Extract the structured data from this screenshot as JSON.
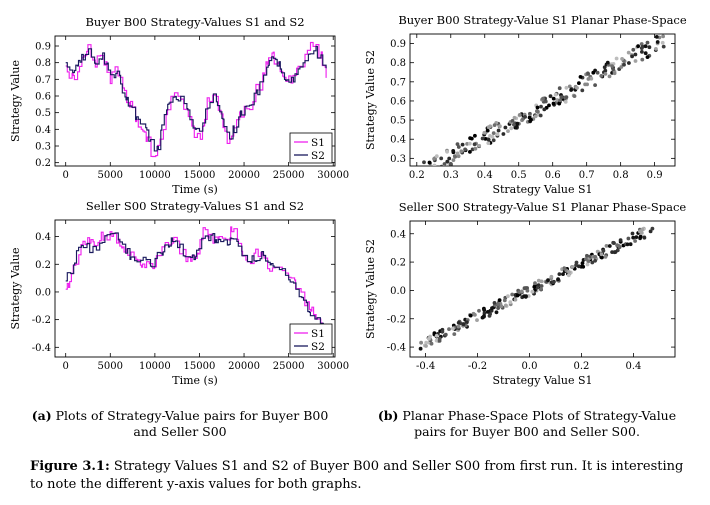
{
  "colors": {
    "s1": "#ee22ee",
    "s2": "#1a1a5e",
    "axis": "#000000"
  },
  "chart_data": [
    {
      "id": "buyer-line",
      "type": "line",
      "title": "Buyer B00 Strategy-Values S1 and S2",
      "xlabel": "Time (s)",
      "ylabel": "Strategy Value",
      "xlim": [
        -1200,
        30200
      ],
      "ylim": [
        0.18,
        0.96
      ],
      "xticks": [
        0,
        5000,
        10000,
        15000,
        20000,
        25000,
        30000
      ],
      "yticks": [
        0.2,
        0.3,
        0.4,
        0.5,
        0.6,
        0.7,
        0.8,
        0.9
      ],
      "legend": "bottom-right",
      "series": [
        {
          "name": "S1",
          "color": "#ee22ee",
          "anchors_x": [
            0,
            800,
            1800,
            2600,
            3400,
            4200,
            5000,
            5800,
            6600,
            7400,
            8200,
            9000,
            9800,
            10400,
            11000,
            11800,
            12600,
            13400,
            14200,
            15000,
            15800,
            16600,
            17400,
            18200,
            19000,
            19800,
            20600,
            21400,
            22200,
            23000,
            23800,
            24600,
            25400,
            26200,
            27000,
            27800,
            28600,
            29200
          ],
          "anchors_y": [
            0.78,
            0.7,
            0.82,
            0.9,
            0.8,
            0.84,
            0.7,
            0.76,
            0.62,
            0.54,
            0.42,
            0.36,
            0.24,
            0.27,
            0.45,
            0.6,
            0.62,
            0.52,
            0.4,
            0.34,
            0.55,
            0.62,
            0.5,
            0.3,
            0.42,
            0.52,
            0.55,
            0.64,
            0.72,
            0.86,
            0.8,
            0.72,
            0.7,
            0.78,
            0.86,
            0.91,
            0.84,
            0.72
          ],
          "seed": 11,
          "noise": 0.04
        },
        {
          "name": "S2",
          "color": "#1a1a5e",
          "anchors_x": [
            0,
            800,
            1800,
            2600,
            3400,
            4200,
            5000,
            5800,
            6600,
            7400,
            8200,
            9000,
            9800,
            10400,
            11000,
            11800,
            12600,
            13400,
            14200,
            15000,
            15800,
            16600,
            17400,
            18200,
            19000,
            19800,
            20600,
            21400,
            22200,
            23000,
            23800,
            24600,
            25400,
            26200,
            27000,
            27800,
            28600,
            29200
          ],
          "anchors_y": [
            0.8,
            0.72,
            0.84,
            0.86,
            0.8,
            0.84,
            0.72,
            0.74,
            0.6,
            0.54,
            0.44,
            0.38,
            0.28,
            0.3,
            0.46,
            0.58,
            0.6,
            0.54,
            0.42,
            0.36,
            0.52,
            0.6,
            0.5,
            0.34,
            0.42,
            0.5,
            0.56,
            0.62,
            0.7,
            0.82,
            0.8,
            0.72,
            0.7,
            0.76,
            0.86,
            0.9,
            0.82,
            0.74
          ],
          "seed": 23,
          "noise": 0.03
        }
      ]
    },
    {
      "id": "seller-line",
      "type": "line",
      "title": "Seller S00 Strategy-Values S1 and S2",
      "xlabel": "Time (s)",
      "ylabel": "Strategy Value",
      "xlim": [
        -1200,
        30200
      ],
      "ylim": [
        -0.47,
        0.52
      ],
      "xticks": [
        0,
        5000,
        10000,
        15000,
        20000,
        25000,
        30000
      ],
      "yticks": [
        -0.4,
        -0.2,
        0.0,
        0.2,
        0.4
      ],
      "legend": "bottom-right",
      "series": [
        {
          "name": "S1",
          "color": "#ee22ee",
          "anchors_x": [
            0,
            600,
            1400,
            2400,
            3400,
            4200,
            5000,
            5800,
            6800,
            7800,
            8800,
            9600,
            10400,
            11200,
            12000,
            12800,
            13800,
            14800,
            15600,
            16400,
            17200,
            18000,
            18800,
            19600,
            20400,
            21200,
            22000,
            22800,
            23600,
            24400,
            25200,
            26000,
            26800,
            27600,
            28400,
            29000
          ],
          "anchors_y": [
            0.02,
            0.12,
            0.3,
            0.36,
            0.3,
            0.42,
            0.4,
            0.36,
            0.3,
            0.2,
            0.18,
            0.2,
            0.24,
            0.34,
            0.4,
            0.3,
            0.2,
            0.3,
            0.46,
            0.4,
            0.36,
            0.4,
            0.44,
            0.3,
            0.22,
            0.26,
            0.32,
            0.16,
            0.16,
            0.2,
            0.06,
            0.04,
            -0.08,
            -0.14,
            -0.22,
            -0.3
          ],
          "seed": 37,
          "noise": 0.045
        },
        {
          "name": "S2",
          "color": "#1a1a5e",
          "anchors_x": [
            0,
            600,
            1400,
            2400,
            3400,
            4200,
            5000,
            5800,
            6800,
            7800,
            8800,
            9600,
            10400,
            11200,
            12000,
            12800,
            13800,
            14800,
            15600,
            16400,
            17200,
            18000,
            18800,
            19600,
            20400,
            21200,
            22000,
            22800,
            23600,
            24400,
            25200,
            26000,
            26800,
            27600,
            28400,
            29000
          ],
          "anchors_y": [
            0.08,
            0.16,
            0.3,
            0.32,
            0.32,
            0.4,
            0.44,
            0.38,
            0.3,
            0.22,
            0.22,
            0.2,
            0.26,
            0.32,
            0.38,
            0.32,
            0.22,
            0.3,
            0.4,
            0.4,
            0.36,
            0.36,
            0.38,
            0.3,
            0.24,
            0.22,
            0.28,
            0.2,
            0.16,
            0.18,
            0.08,
            0.0,
            -0.08,
            -0.16,
            -0.24,
            -0.3
          ],
          "seed": 41,
          "noise": 0.035
        }
      ]
    },
    {
      "id": "buyer-scatter",
      "type": "scatter",
      "title": "Buyer B00 Strategy-Value S1 Planar Phase-Space",
      "xlabel": "Strategy Value S1",
      "ylabel": "Strategy Value S2",
      "xlim": [
        0.18,
        0.96
      ],
      "ylim": [
        0.26,
        0.95
      ],
      "xticks": [
        0.2,
        0.3,
        0.4,
        0.5,
        0.6,
        0.7,
        0.8,
        0.9
      ],
      "yticks": [
        0.3,
        0.4,
        0.5,
        0.6,
        0.7,
        0.8,
        0.9
      ],
      "generator": {
        "n": 230,
        "xmin": 0.22,
        "xmax": 0.93,
        "slope": 0.97,
        "intercept": 0.02,
        "spread": 0.045,
        "seed": 101
      }
    },
    {
      "id": "seller-scatter",
      "type": "scatter",
      "title": "Seller S00 Strategy-Value S1 Planar Phase-Space",
      "xlabel": "Strategy Value S1",
      "ylabel": "Strategy Value S2",
      "xlim": [
        -0.46,
        0.56
      ],
      "ylim": [
        -0.47,
        0.49
      ],
      "xticks": [
        -0.4,
        -0.2,
        0.0,
        0.2,
        0.4
      ],
      "yticks": [
        -0.4,
        -0.2,
        0.0,
        0.2,
        0.4
      ],
      "generator": {
        "n": 230,
        "xmin": -0.42,
        "xmax": 0.48,
        "slope": 0.93,
        "intercept": 0.0,
        "spread": 0.04,
        "seed": 202
      }
    }
  ],
  "captions": {
    "a_label": "(a)",
    "a_text": "Plots of Strategy-Value pairs for Buyer B00 and Seller S00",
    "b_label": "(b)",
    "b_text": "Planar Phase-Space Plots of Strategy-Value pairs for Buyer B00 and Seller S00.",
    "figure_label": "Figure 3.1:",
    "figure_text": "Strategy Values S1 and S2 of Buyer B00 and Seller S00 from first run. It is interesting to note the different y-axis values for both graphs."
  }
}
